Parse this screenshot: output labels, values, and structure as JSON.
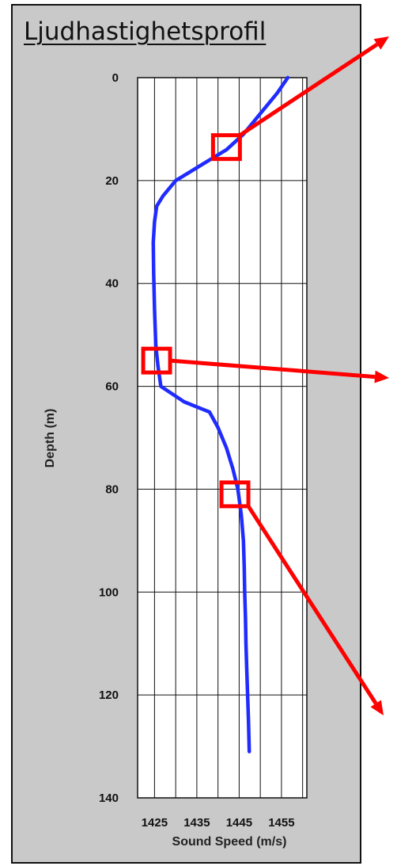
{
  "chart_data": {
    "type": "line",
    "title": "Ljudhastighetsprofil",
    "xlabel": "Sound Speed (m/s)",
    "ylabel": "Depth (m)",
    "xlim": [
      1421,
      1461
    ],
    "ylim": [
      0,
      140
    ],
    "x_ticks": [
      1425,
      1435,
      1445,
      1455
    ],
    "y_ticks": [
      0,
      20,
      40,
      60,
      80,
      100,
      120,
      140
    ],
    "y_inverted": true,
    "grid": true,
    "series": [
      {
        "color": "#1f2bff",
        "points": [
          [
            1456.5,
            0
          ],
          [
            1454,
            3
          ],
          [
            1450,
            7
          ],
          [
            1446,
            11
          ],
          [
            1442,
            14
          ],
          [
            1438,
            16
          ],
          [
            1434,
            18
          ],
          [
            1430,
            20
          ],
          [
            1427,
            23
          ],
          [
            1425.5,
            25
          ],
          [
            1425,
            28
          ],
          [
            1424.7,
            32
          ],
          [
            1424.8,
            38
          ],
          [
            1425,
            45
          ],
          [
            1425.3,
            52
          ],
          [
            1425.8,
            56
          ],
          [
            1426.5,
            60
          ],
          [
            1432,
            63
          ],
          [
            1438,
            65
          ],
          [
            1440,
            68
          ],
          [
            1442,
            72
          ],
          [
            1443.5,
            76
          ],
          [
            1444.7,
            80
          ],
          [
            1445.5,
            85
          ],
          [
            1446,
            90
          ],
          [
            1446.2,
            95
          ],
          [
            1446.3,
            100
          ],
          [
            1446.5,
            105
          ],
          [
            1446.6,
            110
          ],
          [
            1446.8,
            115
          ],
          [
            1447,
            120
          ],
          [
            1447.2,
            125
          ],
          [
            1447.4,
            131
          ]
        ]
      }
    ],
    "annotations": [
      {
        "type": "highlight-box",
        "x": 1442,
        "y": 13.5,
        "color": "#ff0000"
      },
      {
        "type": "highlight-box",
        "x": 1425.5,
        "y": 55,
        "color": "#ff0000"
      },
      {
        "type": "highlight-box",
        "x": 1444,
        "y": 81,
        "color": "#ff0000"
      }
    ]
  }
}
